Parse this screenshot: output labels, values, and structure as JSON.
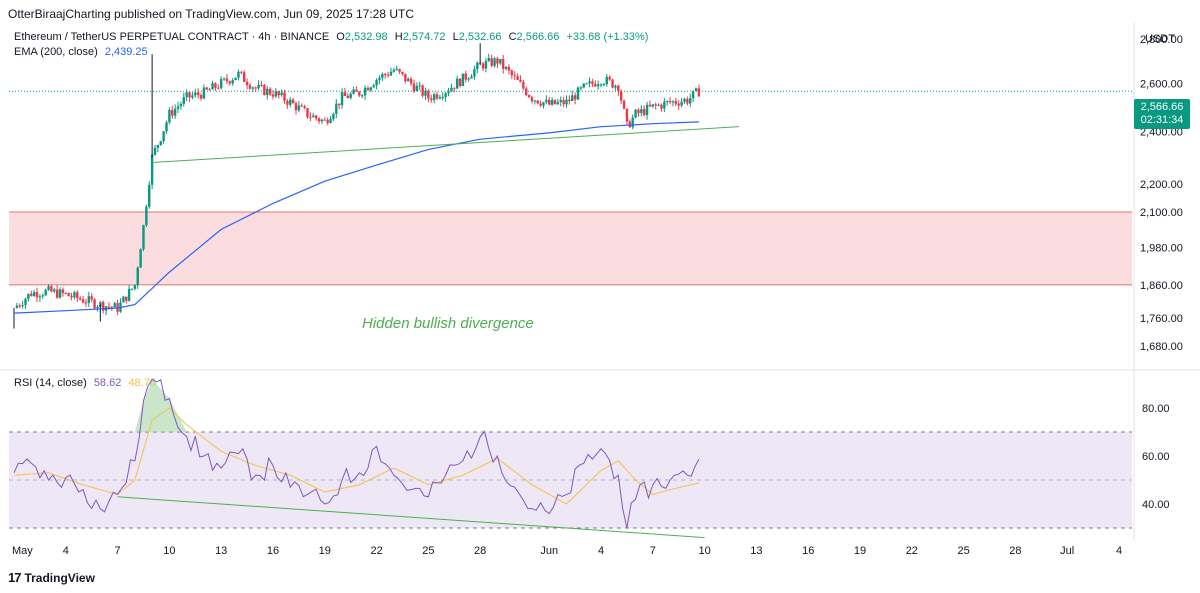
{
  "publisher_line": "OtterBiraajCharting published on TradingView.com, Jun 09, 2025 17:28 UTC",
  "legend": {
    "symbol": "Ethereum / TetherUS PERPETUAL CONTRACT · 4h · BINANCE",
    "o_label": "O",
    "o": "2,532.98",
    "h_label": "H",
    "h": "2,574.72",
    "l_label": "L",
    "l": "2,532.66",
    "c_label": "C",
    "c": "2,566.66",
    "change": "+33.68 (+1.33%)",
    "ema_label": "EMA (200, close)",
    "ema_value": "2,439.25",
    "rsi_label": "RSI (14, close)",
    "rsi_value": "58.62",
    "rsi_ma_value": "48.76"
  },
  "currency": "USDT",
  "last_price_tag": {
    "price": "2,566.66",
    "countdown": "02:31:34"
  },
  "annotation": "Hidden bullish divergence",
  "branding": "TradingView",
  "colors": {
    "up": "#089981",
    "down": "#f23645",
    "ema": "#2962ff",
    "rsi": "#7e57c2",
    "rsi_ma": "#f5c242",
    "trendline": "#4caf50",
    "zone_fill": "#fbdde0",
    "zone_border": "#e57373",
    "rsi_band": "#ede7f6"
  },
  "chart_data": [
    {
      "type": "candlestick",
      "title": "Ethereum / TetherUS PERPETUAL CONTRACT · 4h · BINANCE",
      "y_scale": "log",
      "ylim": [
        1620,
        2880
      ],
      "y_ticks": [
        "2,800.00",
        "2,600.00",
        "2,400.00",
        "2,200.00",
        "2,100.00",
        "1,980.00",
        "1,860.00",
        "1,760.00",
        "1,680.00"
      ],
      "x_ticks": [
        "May",
        "4",
        "7",
        "10",
        "13",
        "16",
        "19",
        "22",
        "25",
        "28",
        "Jun",
        "4",
        "7",
        "10",
        "13",
        "16",
        "19",
        "22",
        "25",
        "28",
        "Jul",
        "4"
      ],
      "x_tick_dates": [
        "2025-05-01",
        "2025-05-04",
        "2025-05-07",
        "2025-05-10",
        "2025-05-13",
        "2025-05-16",
        "2025-05-19",
        "2025-05-22",
        "2025-05-25",
        "2025-05-28",
        "2025-06-01",
        "2025-06-04",
        "2025-06-07",
        "2025-06-10",
        "2025-06-13",
        "2025-06-16",
        "2025-06-19",
        "2025-06-22",
        "2025-06-25",
        "2025-06-28",
        "2025-07-01",
        "2025-07-04"
      ],
      "close_path": [
        [
          "2025-05-01",
          1790
        ],
        [
          "2025-05-02",
          1835
        ],
        [
          "2025-05-03",
          1840
        ],
        [
          "2025-05-04",
          1830
        ],
        [
          "2025-05-05",
          1815
        ],
        [
          "2025-05-06",
          1800
        ],
        [
          "2025-05-07",
          1790
        ],
        [
          "2025-05-08",
          1860
        ],
        [
          "2025-05-08T12",
          2050
        ],
        [
          "2025-05-09",
          2300
        ],
        [
          "2025-05-09T12",
          2380
        ],
        [
          "2025-05-10",
          2470
        ],
        [
          "2025-05-11",
          2540
        ],
        [
          "2025-05-12",
          2560
        ],
        [
          "2025-05-13",
          2600
        ],
        [
          "2025-05-14",
          2640
        ],
        [
          "2025-05-15",
          2580
        ],
        [
          "2025-05-16",
          2560
        ],
        [
          "2025-05-17",
          2520
        ],
        [
          "2025-05-18",
          2470
        ],
        [
          "2025-05-19",
          2440
        ],
        [
          "2025-05-20",
          2540
        ],
        [
          "2025-05-21",
          2560
        ],
        [
          "2025-05-22",
          2620
        ],
        [
          "2025-05-23",
          2660
        ],
        [
          "2025-05-24",
          2600
        ],
        [
          "2025-05-25",
          2540
        ],
        [
          "2025-05-26",
          2570
        ],
        [
          "2025-05-27",
          2620
        ],
        [
          "2025-05-28",
          2680
        ],
        [
          "2025-05-29",
          2700
        ],
        [
          "2025-05-30",
          2620
        ],
        [
          "2025-05-31",
          2540
        ],
        [
          "2025-06-01",
          2510
        ],
        [
          "2025-06-02",
          2520
        ],
        [
          "2025-06-03",
          2580
        ],
        [
          "2025-06-04",
          2620
        ],
        [
          "2025-06-05",
          2590
        ],
        [
          "2025-06-05T12",
          2420
        ],
        [
          "2025-06-06",
          2470
        ],
        [
          "2025-06-07",
          2500
        ],
        [
          "2025-06-08",
          2520
        ],
        [
          "2025-06-09",
          2530
        ],
        [
          "2025-06-09T16",
          2566.66
        ]
      ],
      "wick_extremes": [
        [
          "2025-05-09",
          2730
        ],
        [
          "2025-05-28",
          2780
        ],
        [
          "2025-05-01",
          1730
        ],
        [
          "2025-05-06",
          1750
        ]
      ],
      "ema_200": [
        [
          "2025-05-01",
          1775
        ],
        [
          "2025-05-04",
          1782
        ],
        [
          "2025-05-07",
          1790
        ],
        [
          "2025-05-08",
          1800
        ],
        [
          "2025-05-10",
          1900
        ],
        [
          "2025-05-13",
          2040
        ],
        [
          "2025-05-16",
          2130
        ],
        [
          "2025-05-19",
          2210
        ],
        [
          "2025-05-22",
          2270
        ],
        [
          "2025-05-25",
          2330
        ],
        [
          "2025-05-28",
          2370
        ],
        [
          "2025-06-01",
          2395
        ],
        [
          "2025-06-04",
          2420
        ],
        [
          "2025-06-07",
          2432
        ],
        [
          "2025-06-09T16",
          2439.25
        ]
      ],
      "ema_label": "EMA (200, close)",
      "support_zone": {
        "from": 1860,
        "to": 2100
      },
      "trendline": [
        [
          "2025-05-09",
          2280
        ],
        [
          "2025-06-12",
          2420
        ]
      ],
      "last_price": 2566.66
    },
    {
      "type": "line",
      "title": "RSI (14, close)",
      "ylim": [
        25,
        95
      ],
      "y_ticks": [
        "80.00",
        "60.00",
        "40.00"
      ],
      "bands": {
        "upper": 70,
        "middle": 50,
        "lower": 30
      },
      "series": [
        {
          "name": "RSI (14, close)",
          "points": [
            [
              "2025-05-01",
              53
            ],
            [
              "2025-05-02",
              57
            ],
            [
              "2025-05-03",
              50
            ],
            [
              "2025-05-04",
              51
            ],
            [
              "2025-05-05",
              46
            ],
            [
              "2025-05-06",
              38
            ],
            [
              "2025-05-07",
              44
            ],
            [
              "2025-05-08",
              58
            ],
            [
              "2025-05-08T12",
              83
            ],
            [
              "2025-05-09",
              92
            ],
            [
              "2025-05-10",
              84
            ],
            [
              "2025-05-11",
              68
            ],
            [
              "2025-05-12",
              60
            ],
            [
              "2025-05-13",
              55
            ],
            [
              "2025-05-14",
              61
            ],
            [
              "2025-05-15",
              52
            ],
            [
              "2025-05-16",
              56
            ],
            [
              "2025-05-17",
              47
            ],
            [
              "2025-05-18",
              44
            ],
            [
              "2025-05-19",
              40
            ],
            [
              "2025-05-20",
              50
            ],
            [
              "2025-05-21",
              53
            ],
            [
              "2025-05-22",
              64
            ],
            [
              "2025-05-23",
              52
            ],
            [
              "2025-05-24",
              46
            ],
            [
              "2025-05-25",
              43
            ],
            [
              "2025-05-26",
              52
            ],
            [
              "2025-05-27",
              58
            ],
            [
              "2025-05-28",
              68
            ],
            [
              "2025-05-29",
              60
            ],
            [
              "2025-05-30",
              47
            ],
            [
              "2025-05-31",
              38
            ],
            [
              "2025-06-01",
              36
            ],
            [
              "2025-06-02",
              44
            ],
            [
              "2025-06-03",
              57
            ],
            [
              "2025-06-04",
              63
            ],
            [
              "2025-06-05",
              52
            ],
            [
              "2025-06-05T12",
              30
            ],
            [
              "2025-06-06",
              42
            ],
            [
              "2025-06-07",
              48
            ],
            [
              "2025-06-08",
              50
            ],
            [
              "2025-06-09",
              52
            ],
            [
              "2025-06-09T16",
              58.62
            ]
          ]
        },
        {
          "name": "",
          "points": [
            [
              "2025-05-01",
              52
            ],
            [
              "2025-05-03",
              53
            ],
            [
              "2025-05-05",
              48
            ],
            [
              "2025-05-07",
              44
            ],
            [
              "2025-05-08",
              50
            ],
            [
              "2025-05-09",
              75
            ],
            [
              "2025-05-10",
              80
            ],
            [
              "2025-05-11",
              73
            ],
            [
              "2025-05-13",
              62
            ],
            [
              "2025-05-15",
              56
            ],
            [
              "2025-05-17",
              52
            ],
            [
              "2025-05-19",
              45
            ],
            [
              "2025-05-21",
              48
            ],
            [
              "2025-05-23",
              55
            ],
            [
              "2025-05-25",
              48
            ],
            [
              "2025-05-27",
              52
            ],
            [
              "2025-05-29",
              59
            ],
            [
              "2025-05-31",
              48
            ],
            [
              "2025-06-02",
              40
            ],
            [
              "2025-06-04",
              54
            ],
            [
              "2025-06-05",
              58
            ],
            [
              "2025-06-06",
              50
            ],
            [
              "2025-06-07",
              44
            ],
            [
              "2025-06-08",
              46
            ],
            [
              "2025-06-09T16",
              48.76
            ]
          ]
        }
      ],
      "trendline": [
        [
          "2025-05-07",
          43
        ],
        [
          "2025-06-10",
          26
        ]
      ]
    }
  ]
}
